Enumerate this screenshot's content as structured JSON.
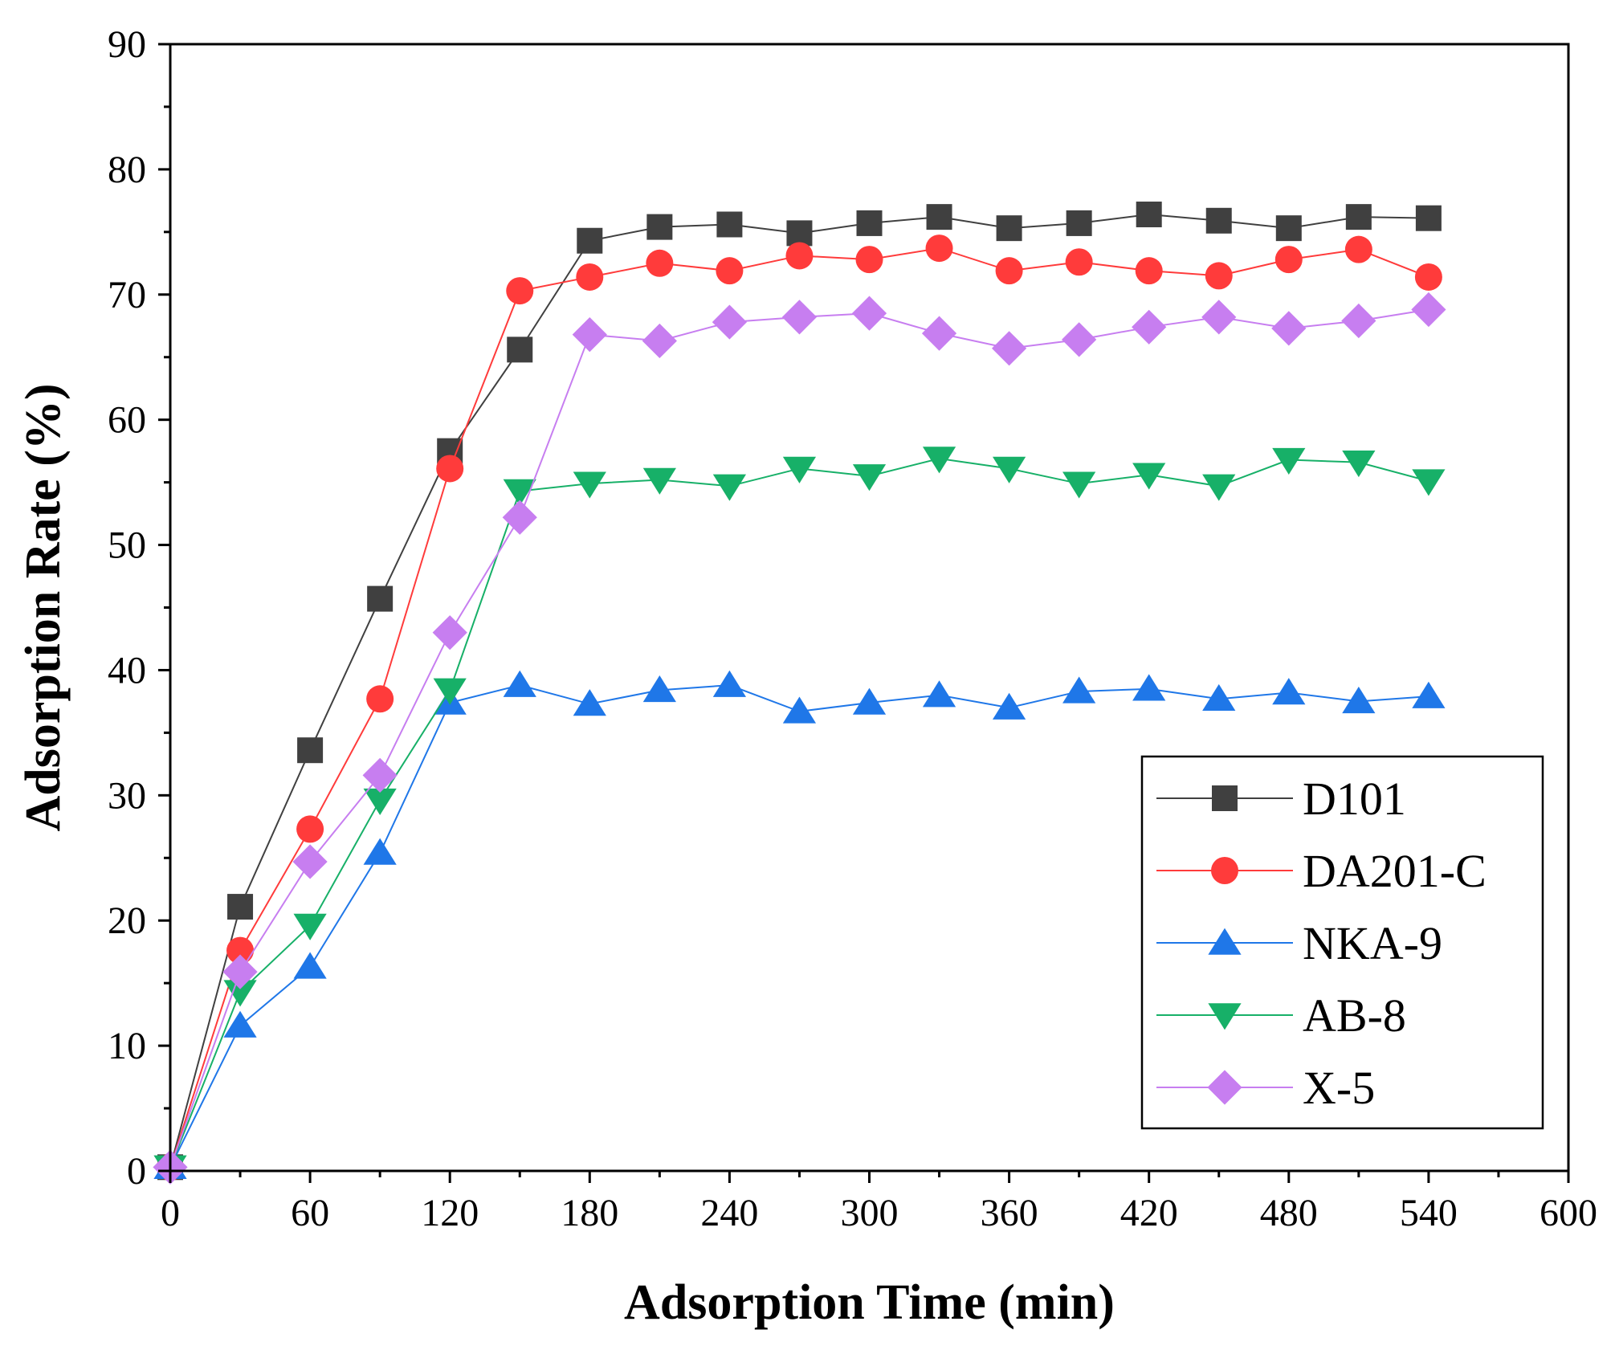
{
  "chart_data": {
    "type": "line",
    "title": "",
    "xlabel": "Adsorption Time (min)",
    "ylabel": "Adsorption Rate (%)",
    "xlim": [
      0,
      600
    ],
    "ylim": [
      0,
      90
    ],
    "xticks": [
      "0",
      "60",
      "120",
      "180",
      "240",
      "300",
      "360",
      "420",
      "480",
      "540",
      "600"
    ],
    "yticks": [
      "0",
      "10",
      "20",
      "30",
      "40",
      "50",
      "60",
      "70",
      "80",
      "90"
    ],
    "grid": false,
    "legend_position": "lower-right",
    "x": [
      0,
      30,
      60,
      90,
      120,
      150,
      180,
      210,
      240,
      270,
      300,
      330,
      360,
      390,
      420,
      450,
      480,
      510,
      540
    ],
    "series": [
      {
        "name": "D101",
        "color": "#404040",
        "marker": "square",
        "values": [
          0.3,
          21.1,
          33.6,
          45.7,
          57.5,
          65.6,
          74.3,
          75.4,
          75.6,
          74.9,
          75.7,
          76.2,
          75.3,
          75.7,
          76.4,
          75.9,
          75.3,
          76.2,
          76.1
        ]
      },
      {
        "name": "DA201-C",
        "color": "#ff3b3b",
        "marker": "circle",
        "values": [
          0.3,
          17.6,
          27.3,
          37.7,
          56.1,
          70.3,
          71.4,
          72.5,
          71.9,
          73.1,
          72.8,
          73.7,
          71.9,
          72.6,
          71.9,
          71.5,
          72.8,
          73.6,
          71.4
        ]
      },
      {
        "name": "NKA-9",
        "color": "#1f77e8",
        "marker": "triangle-up",
        "values": [
          0.3,
          11.6,
          16.3,
          25.4,
          37.4,
          38.8,
          37.3,
          38.4,
          38.8,
          36.7,
          37.4,
          38.0,
          37.0,
          38.3,
          38.5,
          37.7,
          38.2,
          37.5,
          37.9
        ]
      },
      {
        "name": "AB-8",
        "color": "#17b068",
        "marker": "triangle-down",
        "values": [
          0.3,
          14.3,
          19.6,
          29.6,
          38.4,
          54.3,
          54.9,
          55.2,
          54.7,
          56.1,
          55.5,
          56.9,
          56.1,
          54.9,
          55.6,
          54.7,
          56.8,
          56.6,
          55.1
        ]
      },
      {
        "name": "X-5",
        "color": "#c77ef0",
        "marker": "diamond",
        "values": [
          0.3,
          15.9,
          24.7,
          31.6,
          43.0,
          52.2,
          66.8,
          66.3,
          67.8,
          68.2,
          68.5,
          66.9,
          65.7,
          66.4,
          67.4,
          68.2,
          67.3,
          67.9,
          68.8
        ]
      }
    ]
  }
}
